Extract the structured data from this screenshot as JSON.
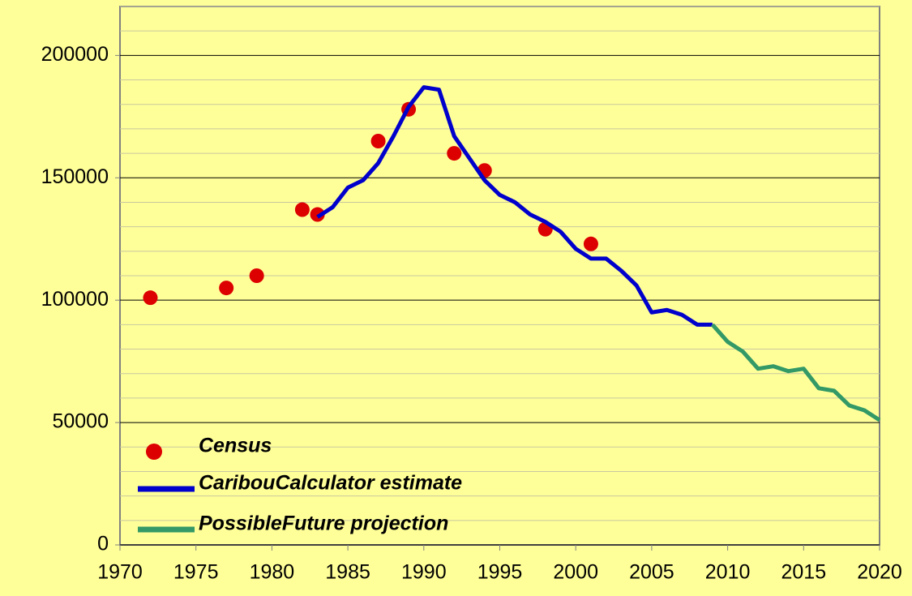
{
  "chart_data": {
    "type": "combo",
    "xlim": [
      1970,
      2020
    ],
    "xticks": [
      1970,
      1975,
      1980,
      1985,
      1990,
      1995,
      2000,
      2005,
      2010,
      2015,
      2020
    ],
    "ylim": [
      0,
      220000
    ],
    "yticks": [
      0,
      50000,
      100000,
      150000,
      200000
    ],
    "yminor": [
      10000,
      20000,
      30000,
      40000,
      60000,
      70000,
      80000,
      90000,
      110000,
      120000,
      130000,
      140000,
      160000,
      170000,
      180000,
      190000,
      210000,
      220000
    ],
    "grid": true,
    "legend": "lower left",
    "series": [
      {
        "name": "Census",
        "kind": "scatter",
        "color": "#dd0000",
        "x": [
          1972,
          1977,
          1979,
          1982,
          1983,
          1987,
          1989,
          1992,
          1994,
          1998,
          2001
        ],
        "values": [
          101000,
          105000,
          110000,
          137000,
          135000,
          165000,
          178000,
          160000,
          153000,
          129000,
          123000
        ]
      },
      {
        "name": "CaribouCalculator estimate",
        "kind": "line",
        "color": "#0000cc",
        "x": [
          1983,
          1984,
          1985,
          1986,
          1987,
          1988,
          1989,
          1990,
          1991,
          1992,
          1993,
          1994,
          1995,
          1996,
          1997,
          1998,
          1999,
          2000,
          2001,
          2002,
          2003,
          2004,
          2005,
          2006,
          2007,
          2008,
          2009
        ],
        "values": [
          134000,
          138000,
          146000,
          149000,
          156000,
          167000,
          179000,
          187000,
          186000,
          167000,
          158000,
          149000,
          143000,
          140000,
          135000,
          132000,
          128000,
          121000,
          117000,
          117000,
          112000,
          106000,
          95000,
          96000,
          94000,
          90000,
          90000
        ]
      },
      {
        "name": "PossibleFuture projection",
        "kind": "line",
        "color": "#339966",
        "x": [
          2009,
          2010,
          2011,
          2012,
          2013,
          2014,
          2015,
          2016,
          2017,
          2018,
          2019,
          2020
        ],
        "values": [
          90000,
          83000,
          79000,
          72000,
          73000,
          71000,
          72000,
          64000,
          63000,
          57000,
          55000,
          51000
        ]
      }
    ]
  }
}
